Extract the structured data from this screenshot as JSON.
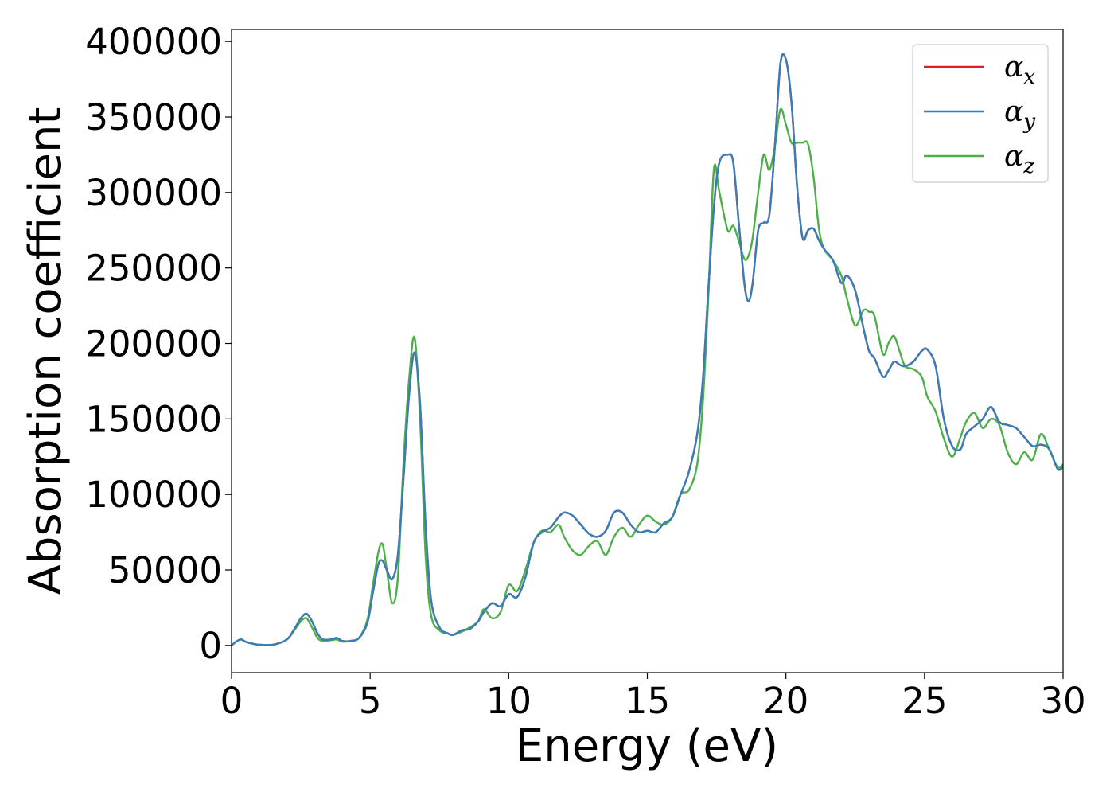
{
  "chart_data": {
    "type": "line",
    "xlabel": "Energy (eV)",
    "ylabel": "Absorption coefficient",
    "xlim": [
      0,
      30
    ],
    "ylim": [
      -18000,
      408000
    ],
    "xticks": [
      0,
      5,
      10,
      15,
      20,
      25,
      30
    ],
    "xtick_labels": [
      "0",
      "5",
      "10",
      "15",
      "20",
      "25",
      "30"
    ],
    "yticks": [
      0,
      50000,
      100000,
      150000,
      200000,
      250000,
      300000,
      350000,
      400000
    ],
    "ytick_labels": [
      "0",
      "50000",
      "100000",
      "150000",
      "200000",
      "250000",
      "300000",
      "350000",
      "400000"
    ],
    "grid": false,
    "legend_position": "top-right",
    "series": [
      {
        "name": "α",
        "subscript": "x",
        "color": "#e41a1c",
        "x": [
          0,
          0.2,
          0.35,
          0.5,
          0.8,
          1.0,
          1.5,
          2.0,
          2.3,
          2.5,
          2.7,
          2.9,
          3.1,
          3.3,
          3.6,
          3.8,
          4.0,
          4.3,
          4.6,
          4.9,
          5.1,
          5.3,
          5.45,
          5.6,
          5.8,
          6.0,
          6.2,
          6.4,
          6.6,
          6.8,
          7.0,
          7.2,
          7.5,
          7.8,
          8.0,
          8.3,
          8.6,
          8.9,
          9.1,
          9.4,
          9.7,
          10.0,
          10.3,
          10.6,
          10.9,
          11.2,
          11.5,
          11.8,
          12.0,
          12.3,
          12.6,
          12.9,
          13.2,
          13.5,
          13.8,
          14.1,
          14.4,
          14.7,
          15.0,
          15.3,
          15.6,
          15.9,
          16.2,
          16.5,
          16.8,
          17.0,
          17.2,
          17.4,
          17.6,
          17.9,
          18.1,
          18.3,
          18.5,
          18.65,
          18.8,
          19.0,
          19.2,
          19.4,
          19.6,
          19.8,
          20.0,
          20.2,
          20.4,
          20.6,
          20.8,
          21.0,
          21.2,
          21.4,
          21.7,
          22.0,
          22.2,
          22.5,
          22.8,
          23.0,
          23.2,
          23.5,
          23.7,
          23.9,
          24.1,
          24.3,
          24.6,
          24.9,
          25.1,
          25.4,
          25.7,
          26.0,
          26.3,
          26.5,
          26.8,
          27.1,
          27.4,
          27.7,
          28.0,
          28.3,
          28.6,
          28.9,
          29.2,
          29.5,
          29.8,
          30.0
        ],
        "y": [
          0,
          3000,
          4000,
          2500,
          1000,
          500,
          500,
          4000,
          12000,
          18000,
          21000,
          16000,
          8000,
          4000,
          4000,
          5000,
          3000,
          3000,
          5000,
          15000,
          35000,
          54000,
          56000,
          50000,
          44000,
          60000,
          110000,
          165000,
          194000,
          160000,
          80000,
          30000,
          12000,
          8000,
          7000,
          10000,
          11000,
          16000,
          22000,
          28000,
          26000,
          34000,
          32000,
          45000,
          68000,
          75000,
          78000,
          85000,
          88000,
          86000,
          80000,
          74000,
          72000,
          76000,
          88000,
          88000,
          80000,
          75000,
          76000,
          75000,
          81000,
          85000,
          100000,
          115000,
          140000,
          175000,
          235000,
          290000,
          320000,
          325000,
          320000,
          280000,
          240000,
          228000,
          240000,
          275000,
          280000,
          285000,
          330000,
          385000,
          388000,
          360000,
          305000,
          270000,
          275000,
          276000,
          268000,
          262000,
          255000,
          240000,
          245000,
          235000,
          210000,
          195000,
          190000,
          178000,
          182000,
          188000,
          186000,
          185000,
          188000,
          195000,
          196000,
          185000,
          150000,
          132000,
          130000,
          140000,
          145000,
          150000,
          158000,
          148000,
          146000,
          144000,
          138000,
          132000,
          133000,
          130000,
          117000,
          118000
        ]
      },
      {
        "name": "α",
        "subscript": "y",
        "color": "#377eb8",
        "x": [
          0,
          0.2,
          0.35,
          0.5,
          0.8,
          1.0,
          1.5,
          2.0,
          2.3,
          2.5,
          2.7,
          2.9,
          3.1,
          3.3,
          3.6,
          3.8,
          4.0,
          4.3,
          4.6,
          4.9,
          5.1,
          5.3,
          5.45,
          5.6,
          5.8,
          6.0,
          6.2,
          6.4,
          6.6,
          6.8,
          7.0,
          7.2,
          7.5,
          7.8,
          8.0,
          8.3,
          8.6,
          8.9,
          9.1,
          9.4,
          9.7,
          10.0,
          10.3,
          10.6,
          10.9,
          11.2,
          11.5,
          11.8,
          12.0,
          12.3,
          12.6,
          12.9,
          13.2,
          13.5,
          13.8,
          14.1,
          14.4,
          14.7,
          15.0,
          15.3,
          15.6,
          15.9,
          16.2,
          16.5,
          16.8,
          17.0,
          17.2,
          17.4,
          17.6,
          17.9,
          18.1,
          18.3,
          18.5,
          18.65,
          18.8,
          19.0,
          19.2,
          19.4,
          19.6,
          19.8,
          20.0,
          20.2,
          20.4,
          20.6,
          20.8,
          21.0,
          21.2,
          21.4,
          21.7,
          22.0,
          22.2,
          22.5,
          22.8,
          23.0,
          23.2,
          23.5,
          23.7,
          23.9,
          24.1,
          24.3,
          24.6,
          24.9,
          25.1,
          25.4,
          25.7,
          26.0,
          26.3,
          26.5,
          26.8,
          27.1,
          27.4,
          27.7,
          28.0,
          28.3,
          28.6,
          28.9,
          29.2,
          29.5,
          29.8,
          30.0
        ],
        "y": [
          0,
          3000,
          4000,
          2500,
          1000,
          500,
          500,
          4000,
          12000,
          18000,
          21000,
          16000,
          8000,
          4000,
          4000,
          5000,
          3000,
          3000,
          5000,
          15000,
          35000,
          54000,
          56000,
          50000,
          44000,
          60000,
          110000,
          165000,
          194000,
          160000,
          80000,
          30000,
          12000,
          8000,
          7000,
          10000,
          11000,
          16000,
          22000,
          28000,
          26000,
          34000,
          32000,
          45000,
          68000,
          75000,
          78000,
          85000,
          88000,
          86000,
          80000,
          74000,
          72000,
          76000,
          88000,
          88000,
          80000,
          75000,
          76000,
          75000,
          81000,
          85000,
          100000,
          115000,
          140000,
          175000,
          235000,
          290000,
          320000,
          325000,
          320000,
          280000,
          240000,
          228000,
          240000,
          275000,
          280000,
          285000,
          330000,
          385000,
          388000,
          360000,
          305000,
          270000,
          275000,
          276000,
          268000,
          262000,
          255000,
          240000,
          245000,
          235000,
          210000,
          195000,
          190000,
          178000,
          182000,
          188000,
          186000,
          185000,
          188000,
          195000,
          196000,
          185000,
          150000,
          132000,
          130000,
          140000,
          145000,
          150000,
          158000,
          148000,
          146000,
          144000,
          138000,
          132000,
          133000,
          130000,
          117000,
          118000
        ]
      },
      {
        "name": "α",
        "subscript": "z",
        "color": "#4daf4a",
        "x": [
          0,
          0.2,
          0.35,
          0.5,
          0.8,
          1.0,
          1.5,
          2.0,
          2.3,
          2.5,
          2.7,
          2.9,
          3.1,
          3.3,
          3.6,
          3.8,
          4.0,
          4.3,
          4.6,
          4.9,
          5.1,
          5.3,
          5.45,
          5.6,
          5.8,
          6.0,
          6.2,
          6.4,
          6.6,
          6.8,
          7.0,
          7.2,
          7.5,
          7.8,
          8.0,
          8.3,
          8.6,
          8.9,
          9.1,
          9.4,
          9.7,
          10.0,
          10.3,
          10.6,
          10.9,
          11.2,
          11.5,
          11.8,
          12.0,
          12.3,
          12.6,
          12.9,
          13.2,
          13.5,
          13.8,
          14.1,
          14.4,
          14.7,
          15.0,
          15.3,
          15.6,
          15.9,
          16.2,
          16.5,
          16.8,
          17.0,
          17.2,
          17.4,
          17.6,
          17.9,
          18.1,
          18.3,
          18.5,
          18.65,
          18.8,
          19.0,
          19.2,
          19.4,
          19.6,
          19.8,
          20.0,
          20.2,
          20.4,
          20.6,
          20.8,
          21.0,
          21.2,
          21.4,
          21.7,
          22.0,
          22.2,
          22.5,
          22.8,
          23.0,
          23.2,
          23.5,
          23.7,
          23.9,
          24.1,
          24.3,
          24.6,
          24.9,
          25.1,
          25.4,
          25.7,
          26.0,
          26.3,
          26.5,
          26.8,
          27.1,
          27.4,
          27.7,
          28.0,
          28.3,
          28.6,
          28.9,
          29.2,
          29.5,
          29.8,
          30.0
        ],
        "y": [
          0,
          3000,
          4000,
          2500,
          1000,
          500,
          500,
          4000,
          11000,
          16000,
          18000,
          12000,
          5000,
          3000,
          3500,
          4000,
          2500,
          3000,
          5000,
          17000,
          40000,
          62000,
          67000,
          50000,
          28000,
          45000,
          120000,
          175000,
          204000,
          150000,
          60000,
          20000,
          10000,
          8000,
          7000,
          9000,
          12000,
          16000,
          24000,
          18000,
          22000,
          40000,
          36000,
          50000,
          68000,
          76000,
          75000,
          80000,
          72000,
          63000,
          60000,
          66000,
          69000,
          60000,
          72000,
          78000,
          72000,
          80000,
          86000,
          82000,
          80000,
          85000,
          100000,
          103000,
          120000,
          160000,
          230000,
          315000,
          300000,
          275000,
          278000,
          268000,
          256000,
          258000,
          270000,
          300000,
          325000,
          315000,
          330000,
          355000,
          345000,
          333000,
          333000,
          333000,
          332000,
          310000,
          275000,
          262000,
          255000,
          245000,
          230000,
          212000,
          222000,
          221000,
          218000,
          193000,
          200000,
          205000,
          195000,
          185000,
          183000,
          178000,
          165000,
          155000,
          137000,
          125000,
          138000,
          148000,
          154000,
          144000,
          150000,
          146000,
          128000,
          120000,
          128000,
          123000,
          140000,
          130000,
          118000,
          120000
        ]
      }
    ]
  }
}
